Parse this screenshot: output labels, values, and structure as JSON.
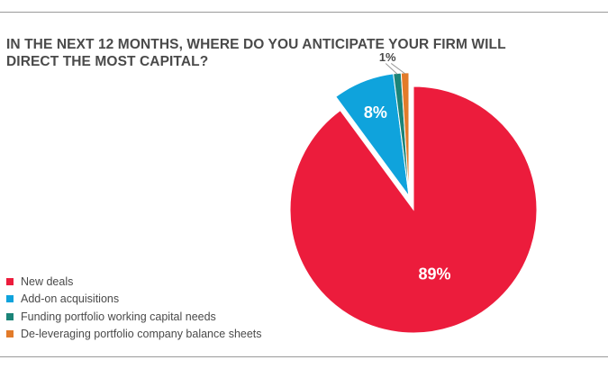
{
  "colors": {
    "rule": "#9a9a9a",
    "text": "#4a4a4a",
    "leader": "#9a9a9a"
  },
  "chart_data": {
    "type": "pie",
    "title": "IN THE NEXT 12 MONTHS, WHERE DO YOU ANTICIPATE YOUR FIRM WILL DIRECT THE MOST CAPITAL?",
    "legend_position": "bottom-left",
    "slices": [
      {
        "name": "New deals",
        "value": 89,
        "label": "89%",
        "color": "#ec1c3c",
        "exploded": false
      },
      {
        "name": "Add-on acquisitions",
        "value": 8,
        "label": "8%",
        "color": "#0fa3dc",
        "exploded": true
      },
      {
        "name": "Funding portfolio working capital needs",
        "value": 1,
        "label": "1%",
        "color": "#1b8478",
        "exploded": true
      },
      {
        "name": "De-leveraging portfolio company balance sheets",
        "value": 1,
        "label": "",
        "color": "#e27b2a",
        "exploded": true
      }
    ]
  }
}
